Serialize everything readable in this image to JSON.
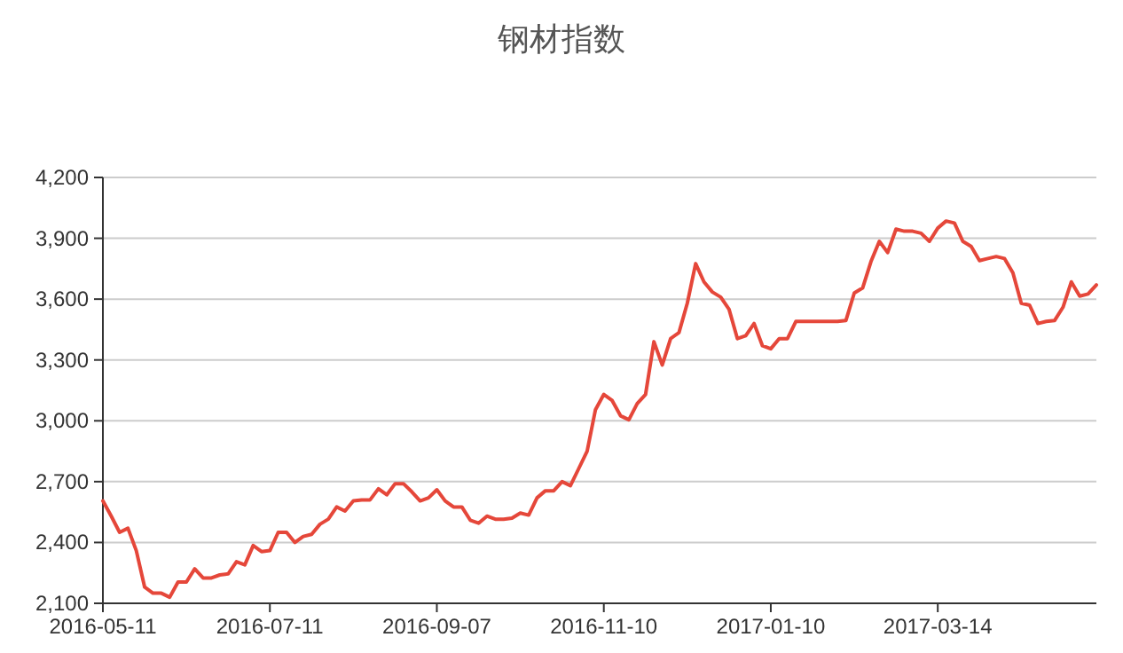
{
  "chart_data": {
    "type": "line",
    "title": "钢材指数",
    "categories": [
      "2016-05-11",
      null,
      null,
      null,
      null,
      null,
      null,
      null,
      null,
      null,
      null,
      null,
      null,
      null,
      null,
      null,
      null,
      null,
      null,
      null,
      "2016-07-11",
      null,
      null,
      null,
      null,
      null,
      null,
      null,
      null,
      null,
      null,
      null,
      null,
      null,
      null,
      null,
      null,
      null,
      null,
      null,
      "2016-09-07",
      null,
      null,
      null,
      null,
      null,
      null,
      null,
      null,
      null,
      null,
      null,
      null,
      null,
      null,
      null,
      null,
      null,
      null,
      null,
      "2016-11-10",
      null,
      null,
      null,
      null,
      null,
      null,
      null,
      null,
      null,
      null,
      null,
      null,
      null,
      null,
      null,
      null,
      null,
      null,
      null,
      "2017-01-10",
      null,
      null,
      null,
      null,
      null,
      null,
      null,
      null,
      null,
      null,
      null,
      null,
      null,
      null,
      null,
      null,
      null,
      null,
      null,
      "2017-03-14",
      null,
      null,
      null,
      null,
      null,
      null,
      null,
      null,
      null,
      null,
      null,
      null,
      null,
      null,
      null,
      null,
      null,
      null,
      null
    ],
    "series": [
      {
        "color": "#e5473a",
        "values": [
          2605,
          2530,
          2450,
          2470,
          2360,
          2180,
          2150,
          2150,
          2130,
          2205,
          2205,
          2270,
          2225,
          2225,
          2240,
          2245,
          2305,
          2290,
          2385,
          2355,
          2360,
          2450,
          2450,
          2400,
          2430,
          2440,
          2490,
          2515,
          2575,
          2555,
          2605,
          2610,
          2610,
          2665,
          2635,
          2690,
          2690,
          2650,
          2605,
          2620,
          2660,
          2605,
          2575,
          2575,
          2510,
          2495,
          2530,
          2515,
          2515,
          2520,
          2545,
          2535,
          2620,
          2655,
          2655,
          2700,
          2680,
          2765,
          2850,
          3055,
          3130,
          3100,
          3025,
          3005,
          3085,
          3130,
          3390,
          3275,
          3405,
          3435,
          3580,
          3775,
          3685,
          3635,
          3610,
          3550,
          3405,
          3420,
          3480,
          3370,
          3355,
          3405,
          3405,
          3490,
          3490,
          3490,
          3490,
          3490,
          3490,
          3495,
          3630,
          3655,
          3785,
          3885,
          3830,
          3945,
          3935,
          3935,
          3925,
          3885,
          3950,
          3985,
          3975,
          3885,
          3860,
          3790,
          3800,
          3810,
          3800,
          3730,
          3580,
          3570,
          3480,
          3490,
          3495,
          3560,
          3685,
          3615,
          3625,
          3670
        ]
      }
    ],
    "ylim": [
      2100,
      4200
    ],
    "yticks": [
      {
        "value": 2100,
        "label": "2,100"
      },
      {
        "value": 2400,
        "label": "2,400"
      },
      {
        "value": 2700,
        "label": "2,700"
      },
      {
        "value": 3000,
        "label": "3,000"
      },
      {
        "value": 3300,
        "label": "3,300"
      },
      {
        "value": 3600,
        "label": "3,600"
      },
      {
        "value": 3900,
        "label": "3,900"
      },
      {
        "value": 4200,
        "label": "4,200"
      }
    ],
    "grid": "y",
    "marker": "none",
    "line_style": "solid"
  }
}
